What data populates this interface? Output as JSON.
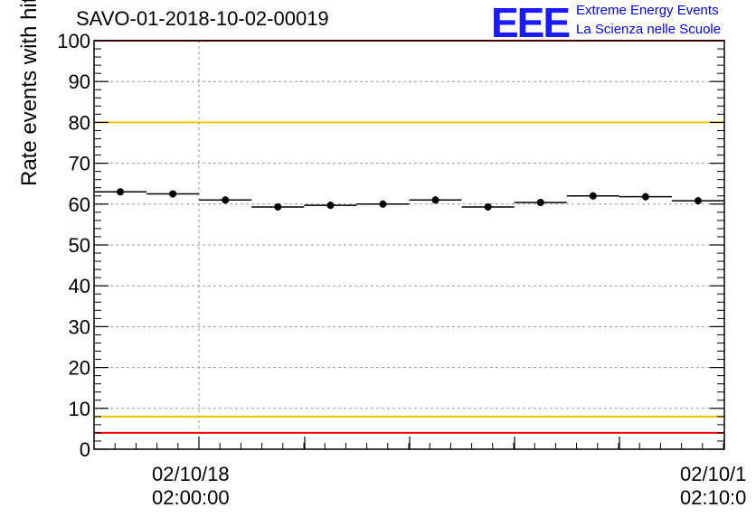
{
  "title": "SAVO-01-2018-10-02-00019",
  "logo": {
    "mark": "EEE",
    "line1": "Extreme Energy Events",
    "line2": "La Scienza nelle Scuole"
  },
  "chart_data": {
    "type": "scatter",
    "ylabel": "Rate events with hits [Hz]",
    "ylim": [
      0,
      100
    ],
    "yticks": [
      "0",
      "10",
      "20",
      "30",
      "40",
      "50",
      "60",
      "70",
      "80",
      "90",
      "100"
    ],
    "xticks": [
      {
        "date": "02/10/18",
        "time": "02:00:00"
      },
      {
        "date": "02/10/1",
        "time": "02:10:0"
      }
    ],
    "grid": true,
    "thresholds": [
      {
        "value": 100,
        "color": "#ff0000"
      },
      {
        "value": 80,
        "color": "#f2c300"
      },
      {
        "value": 8,
        "color": "#f2c300"
      },
      {
        "value": 4,
        "color": "#ff0000"
      }
    ],
    "series": [
      {
        "values": [
          63.0,
          62.5,
          61.0,
          59.3,
          59.7,
          60.0,
          61.0,
          59.3,
          60.4,
          62.0,
          61.8,
          60.8
        ]
      }
    ]
  }
}
